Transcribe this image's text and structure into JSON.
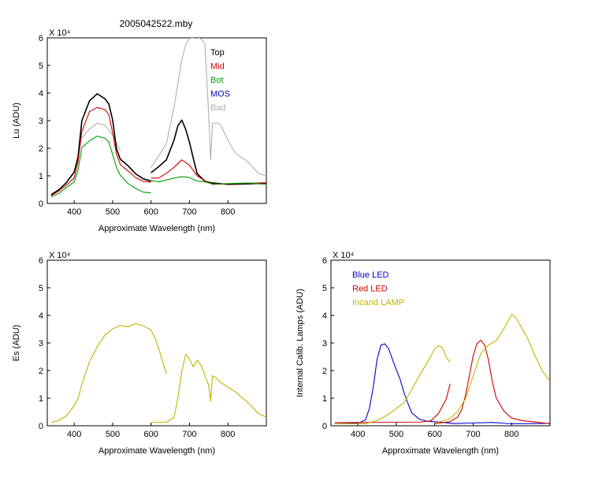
{
  "title": "2005042522.mby",
  "charts": [
    {
      "id": "lu",
      "type": "line",
      "ylabel": "Lu (ADU)",
      "xlabel": "Approximate Wavelength (nm)",
      "exponent": "X 10⁴",
      "xlim": [
        330,
        900
      ],
      "ylim": [
        0,
        6
      ],
      "xticks": [
        400,
        500,
        600,
        700,
        800
      ],
      "yticks": [
        0,
        1,
        2,
        3,
        4,
        5,
        6
      ],
      "legend": [
        {
          "label": "Top",
          "color": "#000000"
        },
        {
          "label": "Mid",
          "color": "#cc0000"
        },
        {
          "label": "Bot",
          "color": "#00a000"
        },
        {
          "label": "MOS",
          "color": "#0000cc"
        },
        {
          "label": "Bad",
          "color": "#b0b0b0"
        }
      ]
    },
    {
      "id": "es",
      "type": "line",
      "ylabel": "Es (ADU)",
      "xlabel": "Approximate Wavelength (nm)",
      "exponent": "X 10⁴",
      "xlim": [
        330,
        900
      ],
      "ylim": [
        0,
        6
      ],
      "xticks": [
        400,
        500,
        600,
        700,
        800
      ],
      "yticks": [
        0,
        1,
        2,
        3,
        4,
        5,
        6
      ],
      "legend": []
    },
    {
      "id": "lamps",
      "type": "line",
      "ylabel": "Internal Calib. Lamps (ADU)",
      "xlabel": "Approximate Wavelength (nm)",
      "exponent": "X 10⁴",
      "xlim": [
        330,
        900
      ],
      "ylim": [
        0,
        6
      ],
      "xticks": [
        400,
        500,
        600,
        700,
        800
      ],
      "yticks": [
        0,
        1,
        2,
        3,
        4,
        5,
        6
      ],
      "legend": [
        {
          "label": "Blue LED",
          "color": "#0000cc"
        },
        {
          "label": "Red LED",
          "color": "#cc0000"
        },
        {
          "label": "Incand LAMP",
          "color": "#c0b400"
        }
      ]
    }
  ],
  "chart_data": [
    {
      "type": "line",
      "ylabel": "Lu (ADU)",
      "xlabel": "Approximate Wavelength (nm)",
      "xlim": [
        330,
        900
      ],
      "ylim": [
        0,
        6
      ],
      "series": [
        {
          "name": "Top",
          "color": "#000000",
          "x": [
            340,
            360,
            380,
            400,
            410,
            420,
            440,
            460,
            480,
            490,
            500,
            510,
            520,
            540,
            560,
            580,
            600
          ],
          "y": [
            0.35,
            0.5,
            0.75,
            1.1,
            1.7,
            3.0,
            3.7,
            4.0,
            3.8,
            3.6,
            3.0,
            2.0,
            1.6,
            1.35,
            1.1,
            0.9,
            0.8
          ]
        },
        {
          "name": "Top",
          "color": "#000000",
          "x": [
            600,
            620,
            640,
            660,
            670,
            680,
            690,
            700,
            710,
            720,
            740,
            760,
            800,
            850,
            900
          ],
          "y": [
            1.1,
            1.3,
            1.6,
            2.3,
            2.8,
            3.05,
            2.7,
            2.2,
            1.6,
            1.1,
            0.8,
            0.72,
            0.72,
            0.72,
            0.72
          ]
        },
        {
          "name": "Mid",
          "color": "#cc0000",
          "x": [
            340,
            360,
            380,
            400,
            410,
            420,
            440,
            460,
            480,
            490,
            500,
            510,
            520,
            540,
            560,
            580,
            600
          ],
          "y": [
            0.3,
            0.45,
            0.65,
            0.95,
            1.5,
            2.6,
            3.3,
            3.5,
            3.4,
            3.2,
            2.6,
            1.8,
            1.4,
            1.15,
            0.95,
            0.8,
            0.75
          ]
        },
        {
          "name": "Mid",
          "color": "#cc0000",
          "x": [
            600,
            620,
            640,
            660,
            680,
            700,
            720,
            740,
            760,
            800,
            850,
            900
          ],
          "y": [
            0.9,
            0.95,
            1.1,
            1.3,
            1.55,
            1.4,
            1.0,
            0.8,
            0.72,
            0.72,
            0.72,
            0.72
          ]
        },
        {
          "name": "Bot",
          "color": "#00a000",
          "x": [
            340,
            360,
            380,
            400,
            410,
            420,
            440,
            460,
            480,
            490,
            500,
            510,
            520,
            540,
            560,
            580,
            600
          ],
          "y": [
            0.25,
            0.35,
            0.55,
            0.8,
            1.2,
            2.0,
            2.3,
            2.45,
            2.35,
            2.2,
            1.8,
            1.3,
            1.0,
            0.75,
            0.55,
            0.4,
            0.35
          ]
        },
        {
          "name": "Bot",
          "color": "#00a000",
          "x": [
            600,
            620,
            640,
            660,
            680,
            700,
            720,
            740,
            760,
            800,
            850,
            900
          ],
          "y": [
            0.8,
            0.8,
            0.85,
            0.9,
            1.0,
            0.95,
            0.8,
            0.75,
            0.72,
            0.72,
            0.72,
            0.72
          ]
        },
        {
          "name": "Bad",
          "color": "#b0b0b0",
          "x": [
            600,
            620,
            640,
            660,
            680,
            690,
            700,
            710,
            720,
            730,
            740,
            745,
            750,
            755,
            760,
            770,
            780,
            800,
            820,
            850,
            880,
            900
          ],
          "y": [
            1.3,
            1.7,
            2.2,
            3.5,
            5.2,
            5.7,
            6.0,
            6.0,
            6.0,
            6.0,
            5.8,
            4.5,
            3.2,
            1.6,
            2.9,
            2.9,
            2.9,
            2.3,
            1.8,
            1.5,
            1.1,
            1.0
          ]
        },
        {
          "name": "Bad",
          "color": "#b0b0b0",
          "x": [
            420,
            440,
            460,
            480,
            500,
            520
          ],
          "y": [
            2.4,
            2.7,
            2.9,
            2.8,
            2.5,
            1.9
          ]
        }
      ]
    },
    {
      "type": "line",
      "ylabel": "Es (ADU)",
      "xlabel": "Approximate Wavelength (nm)",
      "xlim": [
        330,
        900
      ],
      "ylim": [
        0,
        6
      ],
      "series": [
        {
          "color": "#c0b400",
          "x": [
            340,
            360,
            380,
            400,
            410,
            420,
            440,
            460,
            480,
            500,
            520,
            540,
            560,
            580,
            600,
            610,
            620,
            630,
            640
          ],
          "y": [
            0.15,
            0.2,
            0.35,
            0.7,
            1.0,
            1.5,
            2.3,
            2.9,
            3.3,
            3.5,
            3.6,
            3.6,
            3.7,
            3.6,
            3.5,
            3.2,
            2.8,
            2.3,
            1.9
          ]
        },
        {
          "color": "#c0b400",
          "x": [
            600,
            620,
            640,
            660,
            670,
            680,
            690,
            700,
            710,
            720,
            730,
            740,
            750,
            755,
            760,
            770,
            780,
            800,
            820,
            850,
            880,
            900
          ],
          "y": [
            0.1,
            0.1,
            0.15,
            0.3,
            1.0,
            2.0,
            2.6,
            2.4,
            2.1,
            2.4,
            2.2,
            1.8,
            1.5,
            0.9,
            1.8,
            1.7,
            1.6,
            1.4,
            1.2,
            0.9,
            0.45,
            0.3
          ]
        }
      ]
    },
    {
      "type": "line",
      "ylabel": "Internal Calib. Lamps (ADU)",
      "xlabel": "Approximate Wavelength (nm)",
      "xlim": [
        330,
        900
      ],
      "ylim": [
        0,
        6
      ],
      "series": [
        {
          "name": "Blue LED",
          "color": "#0000cc",
          "x": [
            340,
            400,
            420,
            430,
            440,
            450,
            460,
            470,
            480,
            490,
            500,
            510,
            520,
            530,
            540,
            560,
            580,
            600,
            650,
            700,
            750,
            800,
            900
          ],
          "y": [
            0.1,
            0.1,
            0.2,
            0.6,
            1.4,
            2.4,
            2.9,
            3.0,
            2.8,
            2.4,
            2.0,
            1.7,
            1.2,
            0.8,
            0.5,
            0.25,
            0.15,
            0.12,
            0.1,
            0.1,
            0.1,
            0.1,
            0.1
          ]
        },
        {
          "name": "Red LED",
          "color": "#cc0000",
          "x": [
            340,
            560,
            590,
            610,
            630,
            640
          ],
          "y": [
            0.1,
            0.1,
            0.2,
            0.45,
            0.95,
            1.55
          ]
        },
        {
          "name": "Red LED",
          "color": "#cc0000",
          "x": [
            600,
            640,
            660,
            670,
            680,
            690,
            700,
            710,
            720,
            730,
            740,
            750,
            760,
            780,
            800,
            830,
            860,
            900
          ],
          "y": [
            0.1,
            0.15,
            0.3,
            0.6,
            1.1,
            1.8,
            2.5,
            3.0,
            3.1,
            2.9,
            2.4,
            1.6,
            1.0,
            0.5,
            0.3,
            0.18,
            0.12,
            0.1
          ]
        },
        {
          "name": "Incand LAMP",
          "color": "#c0b400",
          "x": [
            340,
            420,
            450,
            480,
            500,
            520,
            540,
            560,
            580,
            600,
            610,
            620,
            630,
            640
          ],
          "y": [
            0.05,
            0.1,
            0.2,
            0.4,
            0.6,
            0.85,
            1.3,
            1.8,
            2.3,
            2.8,
            2.9,
            2.8,
            2.5,
            2.3
          ]
        },
        {
          "name": "Incand LAMP",
          "color": "#c0b400",
          "x": [
            600,
            640,
            660,
            680,
            700,
            720,
            740,
            760,
            780,
            800,
            810,
            820,
            840,
            860,
            880,
            900
          ],
          "y": [
            0.1,
            0.25,
            0.5,
            1.0,
            1.8,
            2.6,
            2.95,
            3.1,
            3.5,
            4.0,
            3.95,
            3.7,
            3.2,
            2.6,
            2.0,
            1.6
          ]
        }
      ]
    }
  ]
}
